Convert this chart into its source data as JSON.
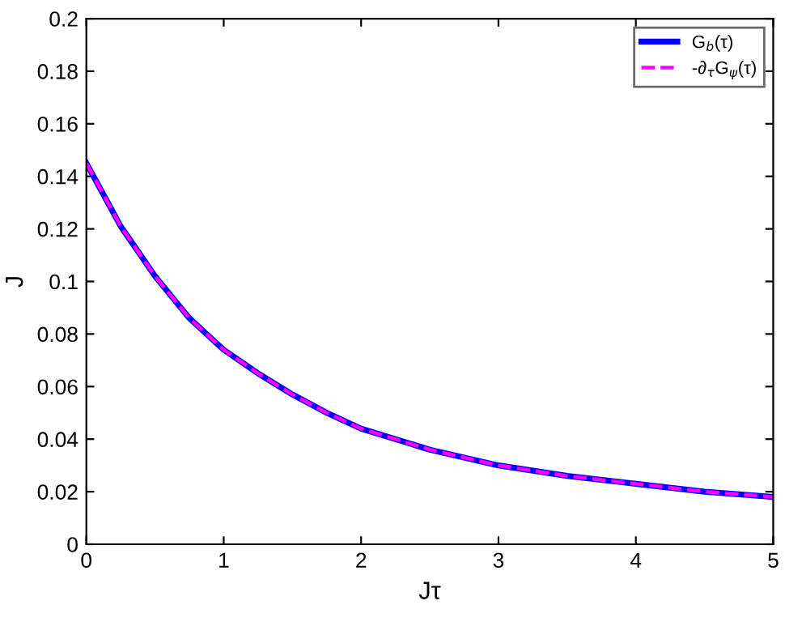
{
  "chart_data": {
    "type": "line",
    "xlabel": "Jτ",
    "ylabel": "J",
    "x": [
      0,
      0.25,
      0.5,
      0.75,
      1,
      1.25,
      1.5,
      1.75,
      2,
      2.5,
      3,
      3.5,
      4,
      4.5,
      5
    ],
    "series": [
      {
        "name": "G$_{b}$(τ)",
        "color": "#0000ff",
        "line_style": "solid",
        "values": [
          0.145,
          0.121,
          0.102,
          0.086,
          0.074,
          0.065,
          0.057,
          0.05,
          0.044,
          0.036,
          0.03,
          0.026,
          0.023,
          0.02,
          0.018
        ]
      },
      {
        "name": "-∂$_{τ}$G$_{ψ}$(τ)",
        "color": "#ff00ff",
        "line_style": "dashed",
        "values": [
          0.145,
          0.121,
          0.102,
          0.086,
          0.074,
          0.065,
          0.057,
          0.05,
          0.044,
          0.036,
          0.03,
          0.026,
          0.023,
          0.02,
          0.018
        ]
      }
    ],
    "xlim": [
      0,
      5
    ],
    "ylim": [
      0,
      0.2
    ],
    "xticks": [
      0,
      1,
      2,
      3,
      4,
      5
    ],
    "yticks": [
      0,
      0.02,
      0.04,
      0.06,
      0.08,
      0.1,
      0.12,
      0.14,
      0.16,
      0.18,
      0.2
    ],
    "legend": "top right",
    "grid": false
  }
}
